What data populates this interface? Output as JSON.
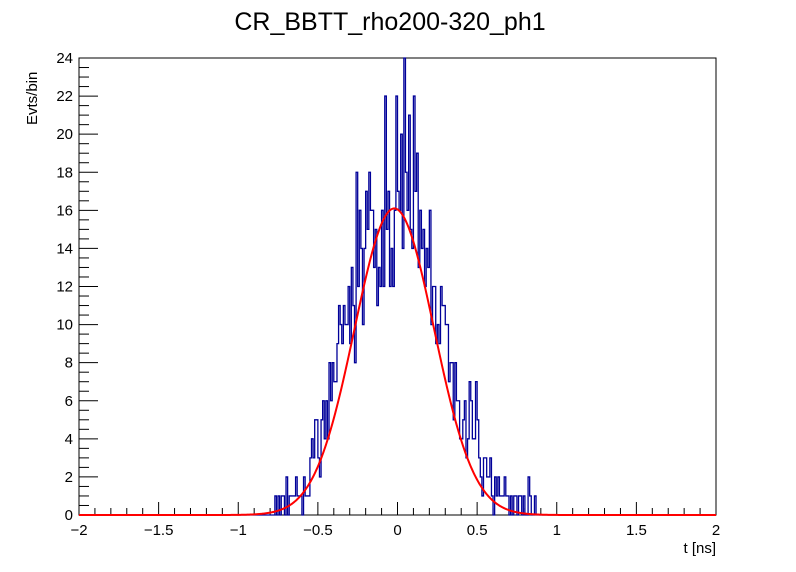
{
  "chart_data": {
    "type": "histogram",
    "title": "CR_BBTT_rho200-320_ph1",
    "xlabel": "t [ns]",
    "ylabel": "Evts/bin",
    "xlim": [
      -2,
      2
    ],
    "ylim": [
      0,
      24
    ],
    "x_ticks": [
      "-2",
      "-1.5",
      "-1",
      "-0.5",
      "0",
      "0.5",
      "1",
      "1.5",
      "2"
    ],
    "y_ticks": [
      "0",
      "2",
      "4",
      "6",
      "8",
      "10",
      "12",
      "14",
      "16",
      "18",
      "20",
      "22",
      "24"
    ],
    "bin_width": 0.01,
    "first_bin_low_edge": -0.85,
    "values": [
      0,
      0,
      0,
      0,
      0,
      0,
      0,
      0,
      1,
      0,
      1,
      0,
      1,
      1,
      0,
      2,
      0,
      1,
      1,
      1,
      1,
      2,
      1,
      1,
      1,
      0,
      2,
      1,
      1,
      1,
      3,
      4,
      3,
      5,
      5,
      3,
      2,
      5,
      6,
      4,
      6,
      4,
      8,
      6,
      8,
      7,
      7,
      9,
      11,
      10,
      9,
      11,
      10,
      10,
      12,
      9,
      13,
      11,
      8,
      18,
      12,
      16,
      14,
      10,
      14,
      17,
      15,
      18,
      16,
      16,
      13,
      15,
      11,
      13,
      12,
      16,
      12,
      22,
      15,
      17,
      12,
      14,
      12,
      16,
      22,
      17,
      16,
      20,
      14,
      24,
      18,
      16,
      21,
      15,
      14,
      22,
      17,
      19,
      13,
      16,
      14,
      15,
      12,
      14,
      13,
      16,
      10,
      12,
      12,
      9,
      10,
      9,
      12,
      11,
      11,
      10,
      10,
      7,
      8,
      8,
      5,
      8,
      6,
      6,
      4,
      4,
      5,
      6,
      3,
      4,
      7,
      6,
      4,
      4,
      7,
      5,
      3,
      2,
      1,
      3,
      3,
      2,
      2,
      3,
      1,
      0,
      2,
      1,
      2,
      1,
      1,
      1,
      2,
      1,
      1,
      0,
      1,
      0,
      1,
      1,
      0,
      1,
      1,
      0,
      1,
      0,
      0,
      2,
      1,
      0,
      0,
      1,
      0,
      0,
      0,
      0,
      0,
      0,
      0,
      0
    ],
    "fit": {
      "type": "gaussian",
      "constant": 16.1,
      "mean": -0.02,
      "sigma": 0.25
    },
    "colors": {
      "histogram": "#000099",
      "fit": "#ff0000"
    }
  }
}
